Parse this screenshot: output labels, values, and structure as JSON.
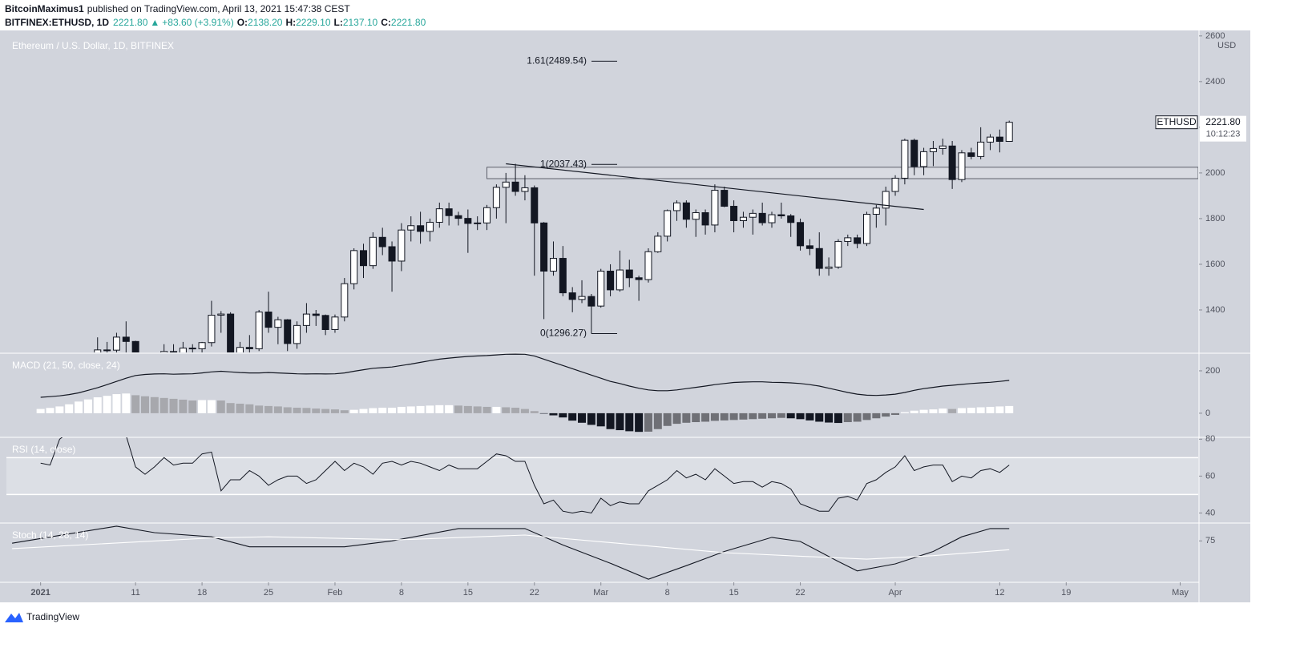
{
  "header": {
    "author": "BitcoinMaximus1",
    "published": "published on TradingView.com, April 13, 2021 15:47:38 CEST",
    "symbol": "BITFINEX:ETHUSD, 1D",
    "last": "2221.80",
    "arrow": "▲",
    "change": "+83.60 (+3.91%)",
    "ohlc_labels": [
      "O:",
      "H:",
      "L:",
      "C:"
    ],
    "ohlc_values": [
      "2138.20",
      "2229.10",
      "2137.10",
      "2221.80"
    ]
  },
  "footer": {
    "brand": "TradingView"
  },
  "chart_data": [
    {
      "type": "candlestick",
      "title": "Ethereum / U.S. Dollar, 1D, BITFINEX",
      "unit": "USD",
      "xlim": [
        -3.6,
        121.9
      ],
      "xticks": [
        {
          "value": 0,
          "label": "2021"
        },
        {
          "value": 10,
          "label": "11"
        },
        {
          "value": 17,
          "label": "18"
        },
        {
          "value": 24,
          "label": "25"
        },
        {
          "value": 31,
          "label": "Feb"
        },
        {
          "value": 38,
          "label": "8"
        },
        {
          "value": 45,
          "label": "15"
        },
        {
          "value": 52,
          "label": "22"
        },
        {
          "value": 59,
          "label": "Mar"
        },
        {
          "value": 66,
          "label": "8"
        },
        {
          "value": 73,
          "label": "15"
        },
        {
          "value": 80,
          "label": "22"
        },
        {
          "value": 90,
          "label": "Apr"
        },
        {
          "value": 101,
          "label": "12"
        },
        {
          "value": 108,
          "label": "19"
        },
        {
          "value": 120,
          "label": "May"
        }
      ],
      "ylim": [
        1214,
        2617
      ],
      "yticks": [
        1400,
        1600,
        1800,
        2000,
        2200,
        2400,
        2600
      ],
      "x": [
        5,
        6,
        7,
        8,
        9,
        10,
        11,
        12,
        13,
        14,
        15,
        16,
        17,
        18,
        19,
        20,
        21,
        22,
        23,
        24,
        25,
        26,
        27,
        28,
        29,
        30,
        31,
        32,
        33,
        34,
        35,
        36,
        37,
        38,
        39,
        40,
        41,
        42,
        43,
        44,
        45,
        46,
        47,
        48,
        49,
        50,
        51,
        52,
        53,
        54,
        55,
        56,
        57,
        58,
        59,
        60,
        61,
        62,
        63,
        64,
        65,
        66,
        67,
        68,
        69,
        70,
        71,
        72,
        73,
        74,
        75,
        76,
        77,
        78,
        79,
        80,
        81,
        82,
        83,
        84,
        85,
        86,
        87,
        88,
        89,
        90,
        91,
        92,
        93,
        94,
        95,
        96,
        97,
        98,
        99,
        100,
        101,
        102
      ],
      "open": [
        1100,
        1208,
        1225,
        1224,
        1281,
        1262,
        1090,
        1043,
        1130,
        1218,
        1171,
        1233,
        1230,
        1257,
        1377,
        1382,
        1121,
        1236,
        1230,
        1391,
        1324,
        1357,
        1253,
        1332,
        1382,
        1376,
        1314,
        1369,
        1515,
        1660,
        1594,
        1718,
        1677,
        1614,
        1750,
        1769,
        1744,
        1784,
        1843,
        1813,
        1801,
        1779,
        1781,
        1848,
        1937,
        1960,
        1919,
        1935,
        1781,
        1570,
        1626,
        1475,
        1446,
        1459,
        1417,
        1570,
        1488,
        1575,
        1541,
        1533,
        1655,
        1723,
        1835,
        1869,
        1797,
        1826,
        1772,
        1924,
        1854,
        1791,
        1806,
        1823,
        1782,
        1817,
        1812,
        1783,
        1681,
        1669,
        1582,
        1588,
        1700,
        1716,
        1691,
        1819,
        1846,
        1919,
        1977,
        2143,
        2028,
        2093,
        2107,
        2118,
        1971,
        2088,
        2072,
        2135,
        2157,
        2138.2
      ],
      "high": [
        1210,
        1280,
        1260,
        1300,
        1350,
        1265,
        1150,
        1140,
        1250,
        1250,
        1260,
        1250,
        1260,
        1440,
        1395,
        1390,
        1260,
        1290,
        1400,
        1480,
        1370,
        1360,
        1350,
        1430,
        1400,
        1380,
        1380,
        1540,
        1670,
        1690,
        1740,
        1760,
        1700,
        1780,
        1810,
        1830,
        1800,
        1870,
        1870,
        1830,
        1840,
        1810,
        1860,
        1950,
        2000,
        2040,
        1990,
        1945,
        1785,
        1700,
        1680,
        1500,
        1530,
        1470,
        1580,
        1600,
        1660,
        1620,
        1550,
        1670,
        1740,
        1840,
        1880,
        1880,
        1840,
        1840,
        1950,
        1940,
        1880,
        1830,
        1840,
        1870,
        1830,
        1870,
        1820,
        1800,
        1710,
        1740,
        1630,
        1710,
        1730,
        1730,
        1830,
        1860,
        1940,
        1990,
        2150,
        2150,
        2110,
        2140,
        2150,
        2140,
        2100,
        2110,
        2200,
        2170,
        2190,
        2229.1
      ],
      "low": [
        1060,
        1170,
        1050,
        1190,
        1170,
        930,
        1030,
        1010,
        1100,
        1120,
        1150,
        1180,
        1160,
        1240,
        1300,
        1100,
        1040,
        1200,
        1220,
        1300,
        1250,
        1220,
        1230,
        1300,
        1330,
        1290,
        1300,
        1350,
        1490,
        1540,
        1580,
        1640,
        1480,
        1570,
        1700,
        1690,
        1700,
        1760,
        1770,
        1770,
        1650,
        1750,
        1750,
        1800,
        1780,
        1900,
        1880,
        1550,
        1360,
        1550,
        1460,
        1390,
        1430,
        1296.27,
        1410,
        1460,
        1480,
        1500,
        1440,
        1520,
        1650,
        1700,
        1790,
        1760,
        1720,
        1730,
        1740,
        1850,
        1740,
        1760,
        1730,
        1770,
        1760,
        1800,
        1720,
        1660,
        1640,
        1550,
        1550,
        1580,
        1680,
        1670,
        1680,
        1760,
        1770,
        1900,
        1950,
        1990,
        1990,
        2030,
        2080,
        1930,
        1960,
        2060,
        2060,
        2100,
        2090,
        2137.1
      ],
      "close": [
        1208,
        1225,
        1224,
        1281,
        1262,
        1090,
        1043,
        1130,
        1218,
        1171,
        1233,
        1230,
        1257,
        1377,
        1382,
        1121,
        1236,
        1230,
        1391,
        1324,
        1357,
        1253,
        1332,
        1382,
        1376,
        1314,
        1369,
        1515,
        1660,
        1594,
        1718,
        1677,
        1614,
        1750,
        1769,
        1744,
        1784,
        1843,
        1813,
        1801,
        1779,
        1781,
        1848,
        1937,
        1960,
        1919,
        1935,
        1781,
        1570,
        1626,
        1475,
        1446,
        1459,
        1417,
        1570,
        1488,
        1575,
        1541,
        1533,
        1655,
        1723,
        1835,
        1869,
        1797,
        1826,
        1772,
        1924,
        1854,
        1791,
        1806,
        1823,
        1782,
        1817,
        1812,
        1783,
        1681,
        1669,
        1582,
        1588,
        1700,
        1716,
        1691,
        1819,
        1846,
        1919,
        1977,
        2143,
        2028,
        2093,
        2107,
        2118,
        1971,
        2088,
        2072,
        2135,
        2157,
        2138.2,
        2221.8
      ],
      "up_color": "#ffffff",
      "down_color": "#131722",
      "fib": [
        {
          "value": 2489.54,
          "label": "1.61(2489.54)"
        },
        {
          "value": 2037.43,
          "label": "1(2037.43)"
        },
        {
          "value": 1296.27,
          "label": "0(1296.27)"
        }
      ],
      "zone": [
        1975,
        2025
      ],
      "zone_start": 47,
      "trendline": [
        [
          49,
          2040
        ],
        [
          93,
          1840
        ]
      ],
      "price_label": {
        "name": "ETHUSD",
        "value": 2221.8,
        "label": "2221.80",
        "countdown": "10:12:23"
      }
    },
    {
      "type": "macd",
      "title": "MACD (21, 50, close, 24)",
      "ylim": [
        -110,
        283
      ],
      "yticks": [
        0,
        200
      ],
      "x": [
        0,
        1,
        2,
        3,
        4,
        5,
        6,
        7,
        8,
        9,
        10,
        11,
        12,
        13,
        14,
        15,
        16,
        17,
        18,
        19,
        20,
        21,
        22,
        23,
        24,
        25,
        26,
        27,
        28,
        29,
        30,
        31,
        32,
        33,
        34,
        35,
        36,
        37,
        38,
        39,
        40,
        41,
        42,
        43,
        44,
        45,
        46,
        47,
        48,
        49,
        50,
        51,
        52,
        53,
        54,
        55,
        56,
        57,
        58,
        59,
        60,
        61,
        62,
        63,
        64,
        65,
        66,
        67,
        68,
        69,
        70,
        71,
        72,
        73,
        74,
        75,
        76,
        77,
        78,
        79,
        80,
        81,
        82,
        83,
        84,
        85,
        86,
        87,
        88,
        89,
        90,
        91,
        92,
        93,
        94,
        95,
        96,
        97,
        98,
        99,
        100,
        101,
        102
      ],
      "macd": [
        75,
        78,
        82,
        88,
        96,
        108,
        120,
        135,
        150,
        165,
        178,
        183,
        185,
        186,
        184,
        185,
        186,
        190,
        195,
        198,
        195,
        192,
        190,
        190,
        192,
        190,
        188,
        186,
        185,
        186,
        185,
        186,
        190,
        198,
        205,
        212,
        215,
        218,
        225,
        232,
        240,
        248,
        255,
        260,
        264,
        268,
        270,
        272,
        275,
        278,
        279,
        278,
        270,
        255,
        240,
        225,
        210,
        195,
        180,
        165,
        150,
        140,
        128,
        118,
        110,
        106,
        106,
        110,
        116,
        122,
        128,
        135,
        140,
        145,
        147,
        148,
        148,
        146,
        145,
        143,
        140,
        135,
        128,
        118,
        108,
        98,
        90,
        85,
        84,
        86,
        90,
        98,
        108,
        116,
        122,
        128,
        132,
        136,
        140,
        143,
        146,
        150,
        155
      ],
      "histogram": [
        20,
        25,
        32,
        42,
        55,
        65,
        75,
        82,
        90,
        93,
        85,
        80,
        76,
        72,
        68,
        64,
        60,
        62,
        62,
        60,
        48,
        45,
        42,
        36,
        34,
        32,
        28,
        26,
        25,
        22,
        20,
        18,
        14,
        16,
        20,
        24,
        26,
        26,
        30,
        32,
        34,
        36,
        38,
        38,
        36,
        34,
        32,
        30,
        30,
        28,
        26,
        20,
        10,
        -2,
        -10,
        -20,
        -35,
        -45,
        -55,
        -62,
        -75,
        -80,
        -85,
        -88,
        -87,
        -75,
        -60,
        -50,
        -45,
        -42,
        -40,
        -36,
        -34,
        -32,
        -30,
        -28,
        -26,
        -24,
        -22,
        -24,
        -28,
        -34,
        -40,
        -44,
        -46,
        -42,
        -40,
        -32,
        -24,
        -16,
        -8,
        5,
        12,
        16,
        18,
        22,
        20,
        24,
        26,
        28,
        30,
        32,
        34
      ],
      "line_color": "#131722",
      "histogram_colors": {
        "rise_above": "#ffffff",
        "fall_above": "#a7a8ad",
        "fall_below": "#131722",
        "rise_below": "#6f7076"
      }
    },
    {
      "type": "rsi",
      "title": "RSI (14, close)",
      "ylim": [
        35,
        81
      ],
      "yticks": [
        40,
        60,
        80
      ],
      "band": [
        50,
        70
      ],
      "color": "#131722",
      "x": [
        0,
        1,
        2,
        3,
        4,
        5,
        6,
        7,
        8,
        9,
        10,
        11,
        12,
        13,
        14,
        15,
        16,
        17,
        18,
        19,
        20,
        21,
        22,
        23,
        24,
        25,
        26,
        27,
        28,
        29,
        30,
        31,
        32,
        33,
        34,
        35,
        36,
        37,
        38,
        39,
        40,
        41,
        42,
        43,
        44,
        45,
        46,
        47,
        48,
        49,
        50,
        51,
        52,
        53,
        54,
        55,
        56,
        57,
        58,
        59,
        60,
        61,
        62,
        63,
        64,
        65,
        66,
        67,
        68,
        69,
        70,
        71,
        72,
        73,
        74,
        75,
        76,
        77,
        78,
        79,
        80,
        81,
        82,
        83,
        84,
        85,
        86,
        87,
        88,
        89,
        90,
        91,
        92,
        93,
        94,
        95,
        96,
        97,
        98,
        99,
        100,
        101,
        102
      ],
      "values": [
        67,
        66,
        80,
        84,
        88,
        90,
        92,
        90,
        88,
        82,
        65,
        61,
        65,
        70,
        66,
        67,
        67,
        72,
        73,
        52,
        58,
        58,
        63,
        60,
        55,
        58,
        60,
        60,
        56,
        58,
        63,
        68,
        63,
        67,
        65,
        61,
        67,
        68,
        66,
        68,
        67,
        65,
        63,
        66,
        64,
        64,
        64,
        68,
        72,
        71,
        68,
        68,
        55,
        45,
        47,
        41,
        40,
        41,
        40,
        48,
        44,
        46,
        45,
        45,
        52,
        55,
        58,
        63,
        59,
        61,
        58,
        64,
        60,
        56,
        57,
        57,
        54,
        57,
        56,
        53,
        45,
        43,
        41,
        41,
        48,
        49,
        47,
        56,
        58,
        62,
        65,
        71,
        63,
        65,
        66,
        66,
        57,
        60,
        59,
        63,
        64,
        62,
        66
      ]
    },
    {
      "type": "stoch",
      "title": "Stoch (14, 28, 14)",
      "ylim": [
        6,
        104
      ],
      "yticks": [
        75
      ],
      "series": [
        {
          "color": "#131722",
          "x": [
            -3,
            8,
            12,
            18,
            22,
            28,
            32,
            37,
            44,
            51,
            55,
            60,
            64,
            68,
            72,
            77,
            80,
            84,
            86,
            90,
            94,
            97,
            100,
            102
          ],
          "values": [
            71,
            100,
            89,
            82,
            65,
            65,
            65,
            75,
            96,
            96,
            68,
            37,
            10,
            33,
            57,
            81,
            74,
            40,
            24,
            36,
            57,
            82,
            96,
            96
          ]
        },
        {
          "color": "#ffffff",
          "x": [
            -3,
            18,
            24,
            38,
            51,
            72,
            80,
            87,
            94,
            102
          ],
          "values": [
            62,
            80,
            82,
            77,
            85,
            55,
            49,
            44,
            50,
            60
          ]
        }
      ]
    }
  ]
}
